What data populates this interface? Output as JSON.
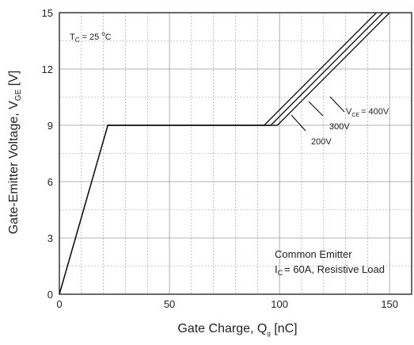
{
  "chart_data": {
    "type": "line",
    "xlabel": {
      "main": "Gate Charge, Q",
      "sub": "g",
      "unit": " [nC]"
    },
    "ylabel": {
      "main": "Gate-Emitter Voltage, V",
      "sub": "GE",
      "unit": " [V]"
    },
    "xlim": [
      0,
      160
    ],
    "ylim": [
      0,
      15
    ],
    "x_ticks": [
      "0",
      "50",
      "100",
      "150"
    ],
    "y_ticks": [
      "0",
      "3",
      "6",
      "9",
      "12",
      "15"
    ],
    "grid": true,
    "series": [
      {
        "name": "200V",
        "x": [
          0,
          22,
          93,
          144
        ],
        "y": [
          0,
          9,
          9,
          15
        ]
      },
      {
        "name": "300V",
        "x": [
          0,
          22,
          96,
          147
        ],
        "y": [
          0,
          9,
          9,
          15
        ]
      },
      {
        "name": "400V",
        "x": [
          0,
          22,
          99,
          150
        ],
        "y": [
          0,
          9,
          9,
          15
        ]
      }
    ],
    "annotations": {
      "temperature": {
        "prefix": "T",
        "sub": "C",
        "value": " = 25 ",
        "sup": "o",
        "suffix": "C"
      },
      "vce": {
        "prefix": "V",
        "sub": "CE",
        "value": "= 400V"
      },
      "v300": "300V",
      "v200": "200V",
      "condition1": "Common Emitter",
      "condition2": {
        "prefix": "I",
        "sub": "C",
        "value": "= 60A, Resistive Load"
      }
    },
    "colors": {
      "line": "#1a1a1a",
      "grid": "#9a9a9a",
      "axis": "#1a1a1a"
    }
  }
}
